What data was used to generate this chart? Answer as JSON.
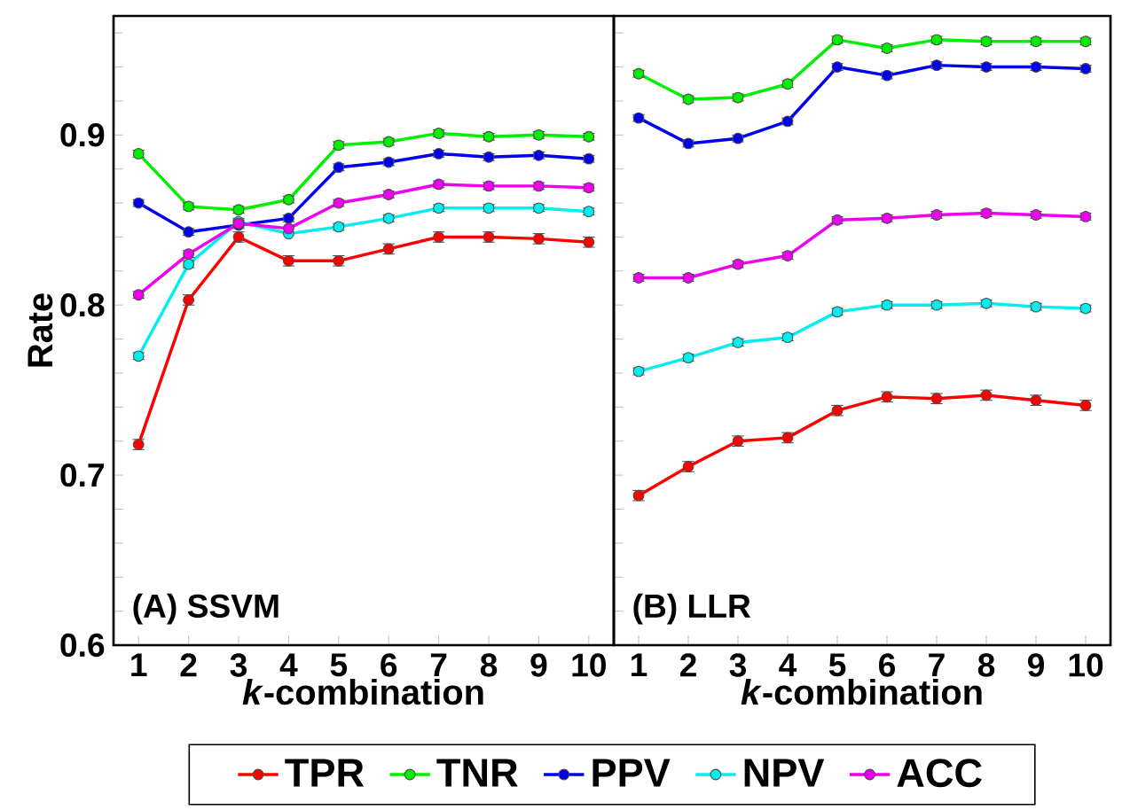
{
  "chart_data": [
    {
      "type": "line",
      "title": "(A)  SSVM",
      "xlabel": "*k*-combination",
      "ylabel": "Rate",
      "categories": [
        "1",
        "2",
        "3",
        "4",
        "5",
        "6",
        "7",
        "8",
        "9",
        "10"
      ],
      "ylim": [
        0.6,
        0.97
      ],
      "yticks": [
        0.6,
        {
          "value": 0.62,
          "label": null
        },
        {
          "value": 0.64,
          "label": null
        },
        {
          "value": 0.66,
          "label": null
        },
        {
          "value": 0.68,
          "label": null
        },
        0.7,
        {
          "value": 0.72,
          "label": null
        },
        {
          "value": 0.74,
          "label": null
        },
        {
          "value": 0.76,
          "label": null
        },
        {
          "value": 0.78,
          "label": null
        },
        0.8,
        {
          "value": 0.82,
          "label": null
        },
        {
          "value": 0.84,
          "label": null
        },
        {
          "value": 0.86,
          "label": null
        },
        {
          "value": 0.88,
          "label": null
        },
        0.9,
        {
          "value": 0.92,
          "label": null
        },
        {
          "value": 0.94,
          "label": null
        },
        {
          "value": 0.96,
          "label": null
        }
      ],
      "marker": "circle",
      "line_style": "solid",
      "legend": "bottom",
      "series": [
        {
          "name": "TPR",
          "color": "#ff0000",
          "values": [
            0.718,
            0.803,
            0.84,
            0.826,
            0.826,
            0.833,
            0.84,
            0.84,
            0.839,
            0.837
          ],
          "errors": [
            0.003,
            0.003,
            0.003,
            0.003,
            0.003,
            0.003,
            0.003,
            0.003,
            0.003,
            0.003
          ]
        },
        {
          "name": "TNR",
          "color": "#00ee00",
          "values": [
            0.889,
            0.858,
            0.856,
            0.862,
            0.894,
            0.896,
            0.901,
            0.899,
            0.9,
            0.899
          ],
          "errors": [
            0.002,
            0.002,
            0.002,
            0.002,
            0.002,
            0.002,
            0.002,
            0.002,
            0.002,
            0.002
          ]
        },
        {
          "name": "PPV",
          "color": "#0000ee",
          "values": [
            0.86,
            0.843,
            0.847,
            0.851,
            0.881,
            0.884,
            0.889,
            0.887,
            0.888,
            0.886
          ],
          "errors": [
            0.002,
            0.002,
            0.002,
            0.002,
            0.002,
            0.002,
            0.002,
            0.002,
            0.002,
            0.002
          ]
        },
        {
          "name": "NPV",
          "color": "#00eeee",
          "values": [
            0.77,
            0.824,
            0.849,
            0.842,
            0.846,
            0.851,
            0.857,
            0.857,
            0.857,
            0.855
          ],
          "errors": [
            0.002,
            0.002,
            0.002,
            null,
            0.002,
            0.002,
            0.002,
            0.002,
            0.002,
            0.002
          ]
        },
        {
          "name": "ACC",
          "color": "#ee00ee",
          "values": [
            0.806,
            0.83,
            0.848,
            0.845,
            0.86,
            0.865,
            0.871,
            0.87,
            0.87,
            0.869
          ],
          "errors": [
            0.002,
            0.002,
            0.002,
            null,
            0.002,
            0.002,
            0.002,
            0.002,
            0.002,
            0.002
          ]
        }
      ]
    },
    {
      "type": "line",
      "title": "(B)  LLR",
      "xlabel": "*k*-combination",
      "categories": [
        "1",
        "2",
        "3",
        "4",
        "5",
        "6",
        "7",
        "8",
        "9",
        "10"
      ],
      "ylim": [
        0.6,
        0.97
      ],
      "yticks": [
        0.6,
        {
          "value": 0.62,
          "label": null
        },
        {
          "value": 0.64,
          "label": null
        },
        {
          "value": 0.66,
          "label": null
        },
        {
          "value": 0.68,
          "label": null
        },
        0.7,
        {
          "value": 0.72,
          "label": null
        },
        {
          "value": 0.74,
          "label": null
        },
        {
          "value": 0.76,
          "label": null
        },
        {
          "value": 0.78,
          "label": null
        },
        0.8,
        {
          "value": 0.82,
          "label": null
        },
        {
          "value": 0.84,
          "label": null
        },
        {
          "value": 0.86,
          "label": null
        },
        {
          "value": 0.88,
          "label": null
        },
        0.9,
        {
          "value": 0.92,
          "label": null
        },
        {
          "value": 0.94,
          "label": null
        },
        {
          "value": 0.96,
          "label": null
        }
      ],
      "tick_labels": "x",
      "marker": "circle",
      "line_style": "solid",
      "series": [
        {
          "color": "#ff0000",
          "values": [
            0.688,
            0.705,
            0.72,
            0.722,
            0.738,
            0.746,
            0.745,
            0.747,
            0.744,
            0.741
          ],
          "errors": [
            0.003,
            0.003,
            0.003,
            0.003,
            0.003,
            0.003,
            0.003,
            0.003,
            0.003,
            0.003
          ]
        },
        {
          "color": "#00ee00",
          "values": [
            0.936,
            0.921,
            0.922,
            0.93,
            0.956,
            0.951,
            0.956,
            0.955,
            0.955,
            0.955
          ],
          "errors": [
            0.002,
            0.002,
            0.002,
            0.002,
            0.002,
            0.002,
            0.002,
            0.002,
            0.002,
            0.002
          ]
        },
        {
          "color": "#0000ee",
          "values": [
            0.91,
            0.895,
            0.898,
            0.908,
            0.94,
            0.935,
            0.941,
            0.94,
            0.94,
            0.939
          ],
          "errors": [
            0.002,
            0.002,
            0.002,
            0.002,
            0.002,
            0.002,
            0.002,
            0.002,
            0.002,
            0.002
          ]
        },
        {
          "color": "#00eeee",
          "values": [
            0.761,
            0.769,
            0.778,
            0.781,
            0.796,
            0.8,
            0.8,
            0.801,
            0.799,
            0.798
          ],
          "errors": [
            0.002,
            0.002,
            0.002,
            0.002,
            0.002,
            0.002,
            0.002,
            0.002,
            0.002,
            0.002
          ]
        },
        {
          "color": "#ee00ee",
          "values": [
            0.816,
            0.816,
            0.824,
            0.829,
            0.85,
            0.851,
            0.853,
            0.854,
            0.853,
            0.852
          ],
          "errors": [
            0.002,
            0.002,
            0.002,
            0.002,
            0.002,
            0.002,
            0.002,
            0.002,
            0.002,
            0.002
          ]
        }
      ]
    }
  ]
}
